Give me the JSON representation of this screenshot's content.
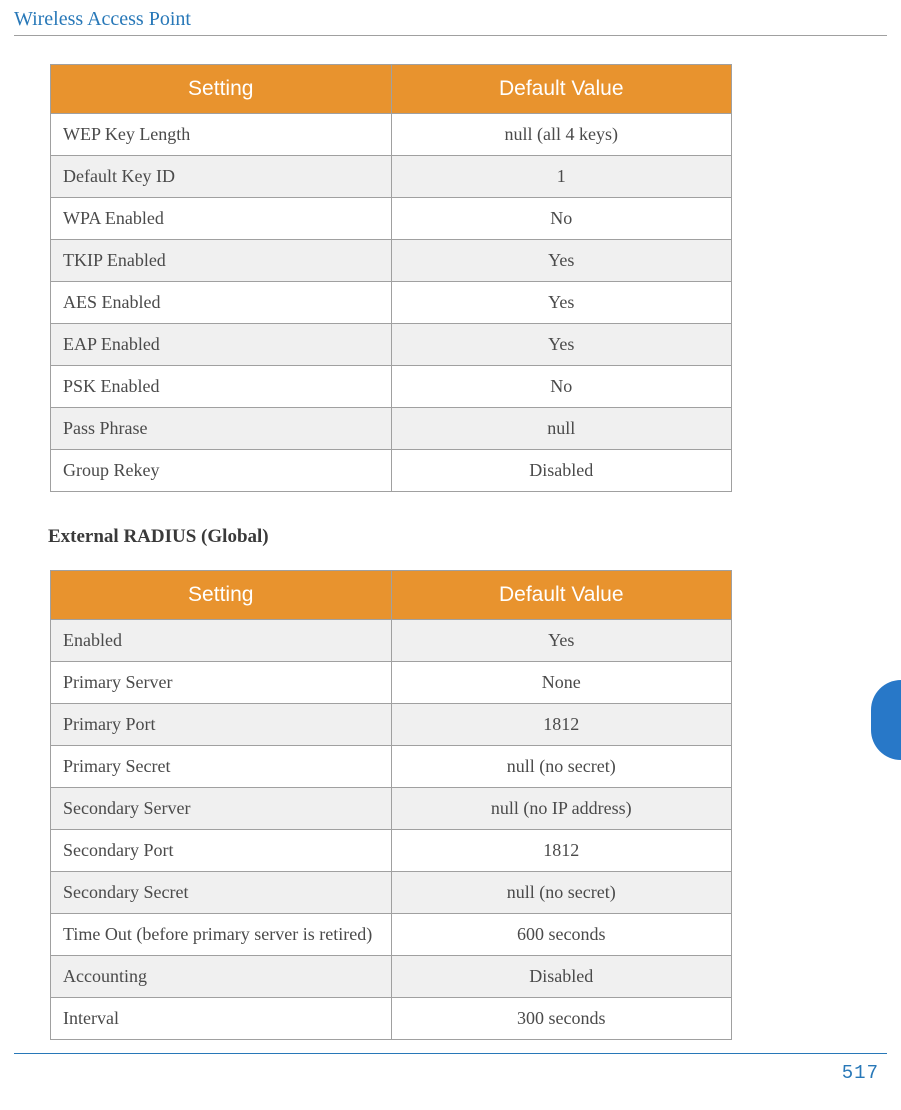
{
  "header": {
    "title": "Wireless Access Point"
  },
  "table1": {
    "columns": [
      "Setting",
      "Default Value"
    ],
    "header_bg": "#e8932e",
    "header_color": "#ffffff",
    "border_color": "#a0a0a0",
    "alt_bg": "#f0f0f0",
    "rows": [
      {
        "setting": "WEP Key Length",
        "value": "null (all 4 keys)",
        "alt": false
      },
      {
        "setting": "Default Key ID",
        "value": "1",
        "alt": true
      },
      {
        "setting": "WPA Enabled",
        "value": "No",
        "alt": false
      },
      {
        "setting": "TKIP Enabled",
        "value": "Yes",
        "alt": true
      },
      {
        "setting": "AES Enabled",
        "value": "Yes",
        "alt": false
      },
      {
        "setting": "EAP Enabled",
        "value": "Yes",
        "alt": true
      },
      {
        "setting": "PSK Enabled",
        "value": "No",
        "alt": false
      },
      {
        "setting": "Pass Phrase",
        "value": "null",
        "alt": true
      },
      {
        "setting": "Group Rekey",
        "value": "Disabled",
        "alt": false
      }
    ]
  },
  "section2": {
    "heading": "External RADIUS (Global)"
  },
  "table2": {
    "columns": [
      "Setting",
      "Default Value"
    ],
    "header_bg": "#e8932e",
    "header_color": "#ffffff",
    "border_color": "#a0a0a0",
    "alt_bg": "#f0f0f0",
    "rows": [
      {
        "setting": "Enabled",
        "value": "Yes",
        "alt": true
      },
      {
        "setting": "Primary Server",
        "value": "None",
        "alt": false
      },
      {
        "setting": "Primary Port",
        "value": "1812",
        "alt": true
      },
      {
        "setting": "Primary Secret",
        "value": "null (no secret)",
        "alt": false
      },
      {
        "setting": "Secondary Server",
        "value": "null (no IP address)",
        "alt": true
      },
      {
        "setting": "Secondary Port",
        "value": "1812",
        "alt": false
      },
      {
        "setting": "Secondary Secret",
        "value": "null (no secret)",
        "alt": true
      },
      {
        "setting": "Time Out (before primary server is retired)",
        "value": "600 seconds",
        "alt": false
      },
      {
        "setting": "Accounting",
        "value": "Disabled",
        "alt": true
      },
      {
        "setting": "Interval",
        "value": "300 seconds",
        "alt": false
      }
    ]
  },
  "footer": {
    "page_number": "517"
  },
  "colors": {
    "header_text": "#2878b8",
    "thumb_tab": "#2878c8",
    "footer_rule": "#2878b8",
    "body_text": "#4a4a4a"
  }
}
